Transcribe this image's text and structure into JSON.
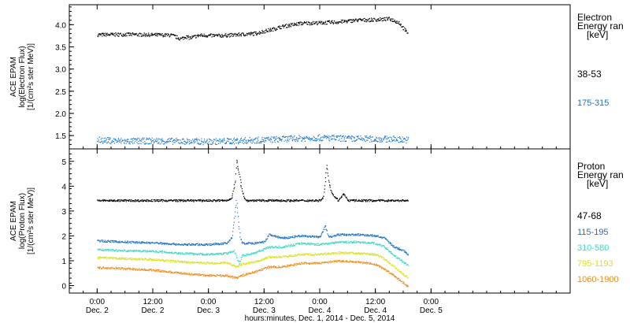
{
  "chart_data": {
    "type": "scatter",
    "xlabel": "hours:minutes, Dec.  1, 2014 - Dec.  5, 2014",
    "x_range_hours": [
      -6,
      102
    ],
    "x_ticks": [
      {
        "hours": 0,
        "time": "0:00",
        "day": "Dec. 2"
      },
      {
        "hours": 12,
        "time": "12:00",
        "day": "Dec. 2"
      },
      {
        "hours": 24,
        "time": "0:00",
        "day": "Dec. 3"
      },
      {
        "hours": 36,
        "time": "12:00",
        "day": "Dec. 3"
      },
      {
        "hours": 48,
        "time": "0:00",
        "day": "Dec. 4"
      },
      {
        "hours": 60,
        "time": "12:00",
        "day": "Dec. 4"
      },
      {
        "hours": 72,
        "time": "0:00",
        "day": "Dec. 5"
      }
    ],
    "panels": [
      {
        "id": "electron",
        "ylabel": [
          "ACE EPAM",
          "log(Electron Flux)",
          "[1/(cm²s ster MeV)]"
        ],
        "ylim": [
          1.2,
          4.45
        ],
        "y_ticks": [
          "1.5",
          "2.0",
          "2.5",
          "3.0",
          "3.5",
          "4.0"
        ],
        "legend_title": [
          "Electron",
          "Energy ran",
          "[keV]"
        ],
        "series": [
          {
            "name": "38-53",
            "color": "#000000",
            "points": [
              [
                0,
                3.77
              ],
              [
                6,
                3.78
              ],
              [
                12,
                3.77
              ],
              [
                16,
                3.76
              ],
              [
                18,
                3.68
              ],
              [
                19,
                3.73
              ],
              [
                20,
                3.7
              ],
              [
                22,
                3.76
              ],
              [
                26,
                3.75
              ],
              [
                30,
                3.77
              ],
              [
                34,
                3.8
              ],
              [
                36,
                3.85
              ],
              [
                38,
                3.9
              ],
              [
                40,
                3.96
              ],
              [
                44,
                4.03
              ],
              [
                48,
                4.04
              ],
              [
                52,
                4.06
              ],
              [
                56,
                4.1
              ],
              [
                60,
                4.11
              ],
              [
                63,
                4.13
              ],
              [
                65,
                4.05
              ],
              [
                66,
                3.92
              ],
              [
                66.5,
                3.84
              ],
              [
                67,
                3.82
              ]
            ]
          },
          {
            "name": "175-315",
            "color": "#1a73c9",
            "points": [
              [
                0,
                1.4
              ],
              [
                6,
                1.37
              ],
              [
                12,
                1.38
              ],
              [
                18,
                1.37
              ],
              [
                24,
                1.36
              ],
              [
                30,
                1.38
              ],
              [
                36,
                1.4
              ],
              [
                42,
                1.43
              ],
              [
                48,
                1.45
              ],
              [
                54,
                1.43
              ],
              [
                60,
                1.42
              ],
              [
                64,
                1.42
              ],
              [
                67,
                1.4
              ]
            ]
          }
        ]
      },
      {
        "id": "proton",
        "ylabel": [
          "ACE EPAM",
          "log(Proton Flux)",
          "[1/(cm²s ster MeV)]"
        ],
        "ylim": [
          -0.3,
          5.5
        ],
        "y_ticks": [
          "0",
          "1",
          "2",
          "3",
          "4",
          "5"
        ],
        "legend_title": [
          "Proton",
          "Energy ran",
          "[keV]"
        ],
        "series": [
          {
            "name": "47-68",
            "color": "#000000",
            "points": [
              [
                0,
                3.42
              ],
              [
                10,
                3.42
              ],
              [
                20,
                3.42
              ],
              [
                28,
                3.42
              ],
              [
                29,
                3.55
              ],
              [
                29.7,
                4.2
              ],
              [
                30,
                5.1
              ],
              [
                30.3,
                4.7
              ],
              [
                30.7,
                4.4
              ],
              [
                31,
                4.0
              ],
              [
                31.5,
                3.6
              ],
              [
                32,
                3.42
              ],
              [
                40,
                3.42
              ],
              [
                48,
                3.42
              ],
              [
                48.8,
                3.6
              ],
              [
                49.2,
                4.3
              ],
              [
                49.5,
                4.85
              ],
              [
                49.9,
                4.2
              ],
              [
                50.4,
                3.8
              ],
              [
                51,
                3.6
              ],
              [
                52,
                3.42
              ],
              [
                53,
                3.7
              ],
              [
                54,
                3.42
              ],
              [
                60,
                3.42
              ],
              [
                67,
                3.42
              ]
            ]
          },
          {
            "name": "115-195",
            "color": "#1a73c9",
            "points": [
              [
                0,
                1.8
              ],
              [
                6,
                1.75
              ],
              [
                12,
                1.72
              ],
              [
                18,
                1.65
              ],
              [
                24,
                1.65
              ],
              [
                28,
                1.7
              ],
              [
                29,
                1.95
              ],
              [
                29.6,
                2.8
              ],
              [
                30,
                3.45
              ],
              [
                30.4,
                2.6
              ],
              [
                30.8,
                1.9
              ],
              [
                31.2,
                1.7
              ],
              [
                34,
                1.7
              ],
              [
                36,
                1.75
              ],
              [
                37,
                2.05
              ],
              [
                40,
                1.9
              ],
              [
                44,
                2.0
              ],
              [
                48,
                1.95
              ],
              [
                49.2,
                2.4
              ],
              [
                49.8,
                1.95
              ],
              [
                52,
                2.05
              ],
              [
                56,
                2.05
              ],
              [
                60,
                2.0
              ],
              [
                62,
                1.9
              ],
              [
                64,
                1.55
              ],
              [
                66,
                1.4
              ],
              [
                67,
                1.25
              ]
            ]
          },
          {
            "name": "310-580",
            "color": "#3fd6c4",
            "points": [
              [
                0,
                1.45
              ],
              [
                6,
                1.4
              ],
              [
                12,
                1.38
              ],
              [
                18,
                1.3
              ],
              [
                24,
                1.25
              ],
              [
                28,
                1.3
              ],
              [
                29.5,
                1.4
              ],
              [
                30,
                1.15
              ],
              [
                30.6,
                0.9
              ],
              [
                31.2,
                1.2
              ],
              [
                34,
                1.32
              ],
              [
                37,
                1.55
              ],
              [
                40,
                1.55
              ],
              [
                44,
                1.7
              ],
              [
                48,
                1.65
              ],
              [
                52,
                1.75
              ],
              [
                56,
                1.75
              ],
              [
                60,
                1.7
              ],
              [
                62,
                1.55
              ],
              [
                64,
                1.2
              ],
              [
                66,
                0.95
              ],
              [
                67,
                0.8
              ]
            ]
          },
          {
            "name": "795-1193",
            "color": "#d8e21c",
            "points": [
              [
                0,
                1.12
              ],
              [
                6,
                1.08
              ],
              [
                12,
                1.05
              ],
              [
                18,
                0.95
              ],
              [
                24,
                0.9
              ],
              [
                28,
                0.92
              ],
              [
                30,
                0.75
              ],
              [
                31,
                0.85
              ],
              [
                34,
                0.95
              ],
              [
                37,
                1.15
              ],
              [
                40,
                1.15
              ],
              [
                44,
                1.25
              ],
              [
                48,
                1.25
              ],
              [
                52,
                1.32
              ],
              [
                56,
                1.3
              ],
              [
                60,
                1.25
              ],
              [
                62,
                1.05
              ],
              [
                64,
                0.75
              ],
              [
                66,
                0.45
              ],
              [
                67,
                0.3
              ]
            ]
          },
          {
            "name": "1060-1900",
            "color": "#f08a1c",
            "points": [
              [
                0,
                0.72
              ],
              [
                6,
                0.68
              ],
              [
                12,
                0.62
              ],
              [
                18,
                0.5
              ],
              [
                24,
                0.4
              ],
              [
                28,
                0.4
              ],
              [
                30,
                0.3
              ],
              [
                31,
                0.4
              ],
              [
                34,
                0.55
              ],
              [
                37,
                0.75
              ],
              [
                40,
                0.75
              ],
              [
                44,
                0.9
              ],
              [
                48,
                0.9
              ],
              [
                52,
                1.0
              ],
              [
                56,
                0.95
              ],
              [
                60,
                0.85
              ],
              [
                62,
                0.65
              ],
              [
                64,
                0.4
              ],
              [
                66,
                0.1
              ],
              [
                67,
                -0.05
              ]
            ]
          }
        ]
      }
    ]
  }
}
